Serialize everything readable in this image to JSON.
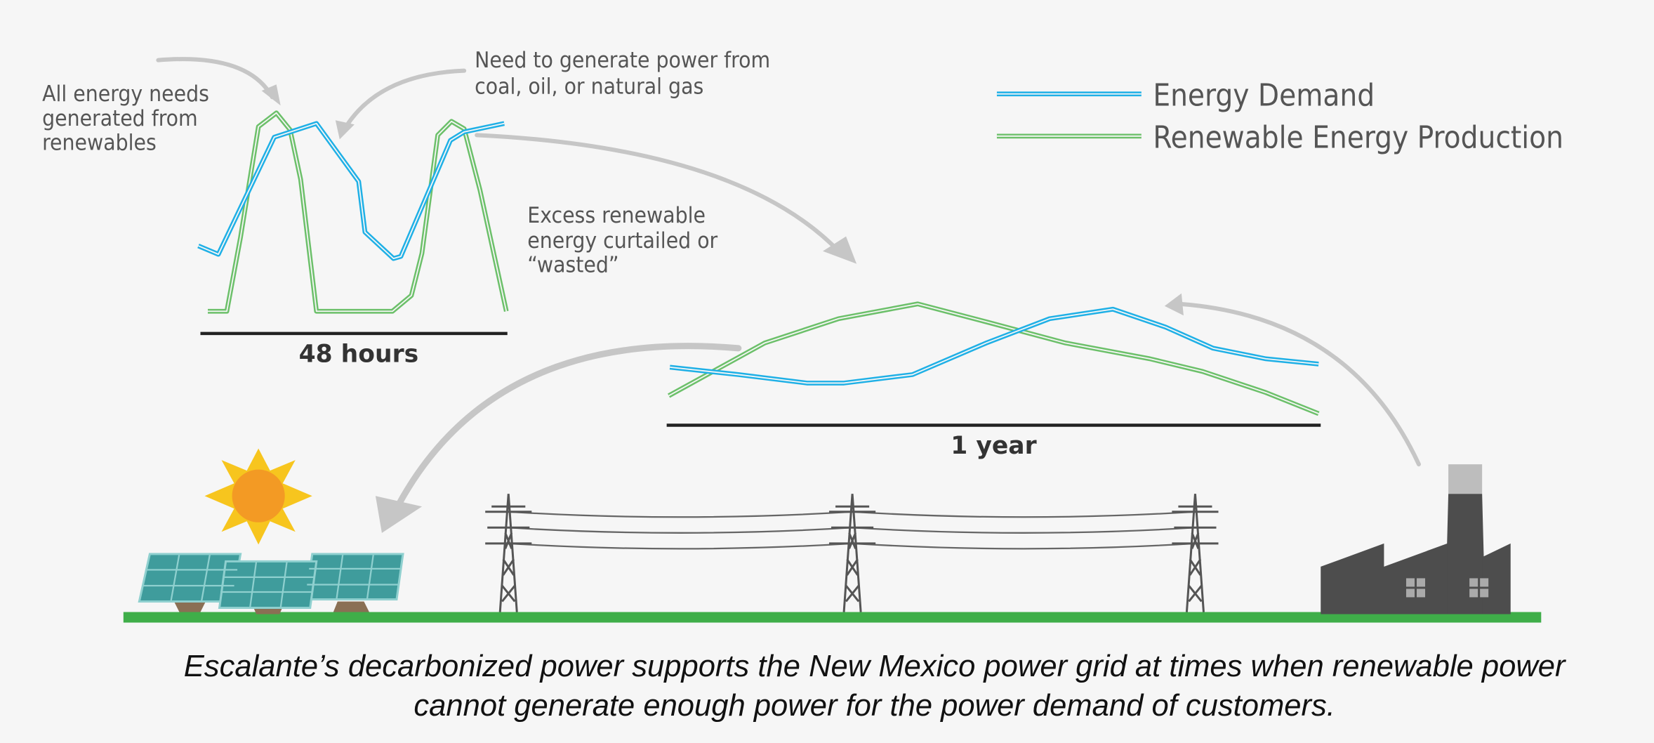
{
  "annotations": {
    "renewables": [
      "All energy needs",
      "generated from",
      "renewables"
    ],
    "fossil": [
      "Need to generate power from",
      "coal, oil, or natural gas"
    ],
    "excess": [
      "Excess renewable",
      "energy curtailed or",
      "“wasted”"
    ]
  },
  "legend": {
    "demand": "Energy Demand",
    "renewable": "Renewable Energy Production"
  },
  "axes": {
    "short": "48 hours",
    "long": "1 year"
  },
  "caption": [
    "Escalante’s decarbonized power supports the New Mexico power grid at times when renewable power",
    "cannot generate enough power for the power demand of customers."
  ]
}
